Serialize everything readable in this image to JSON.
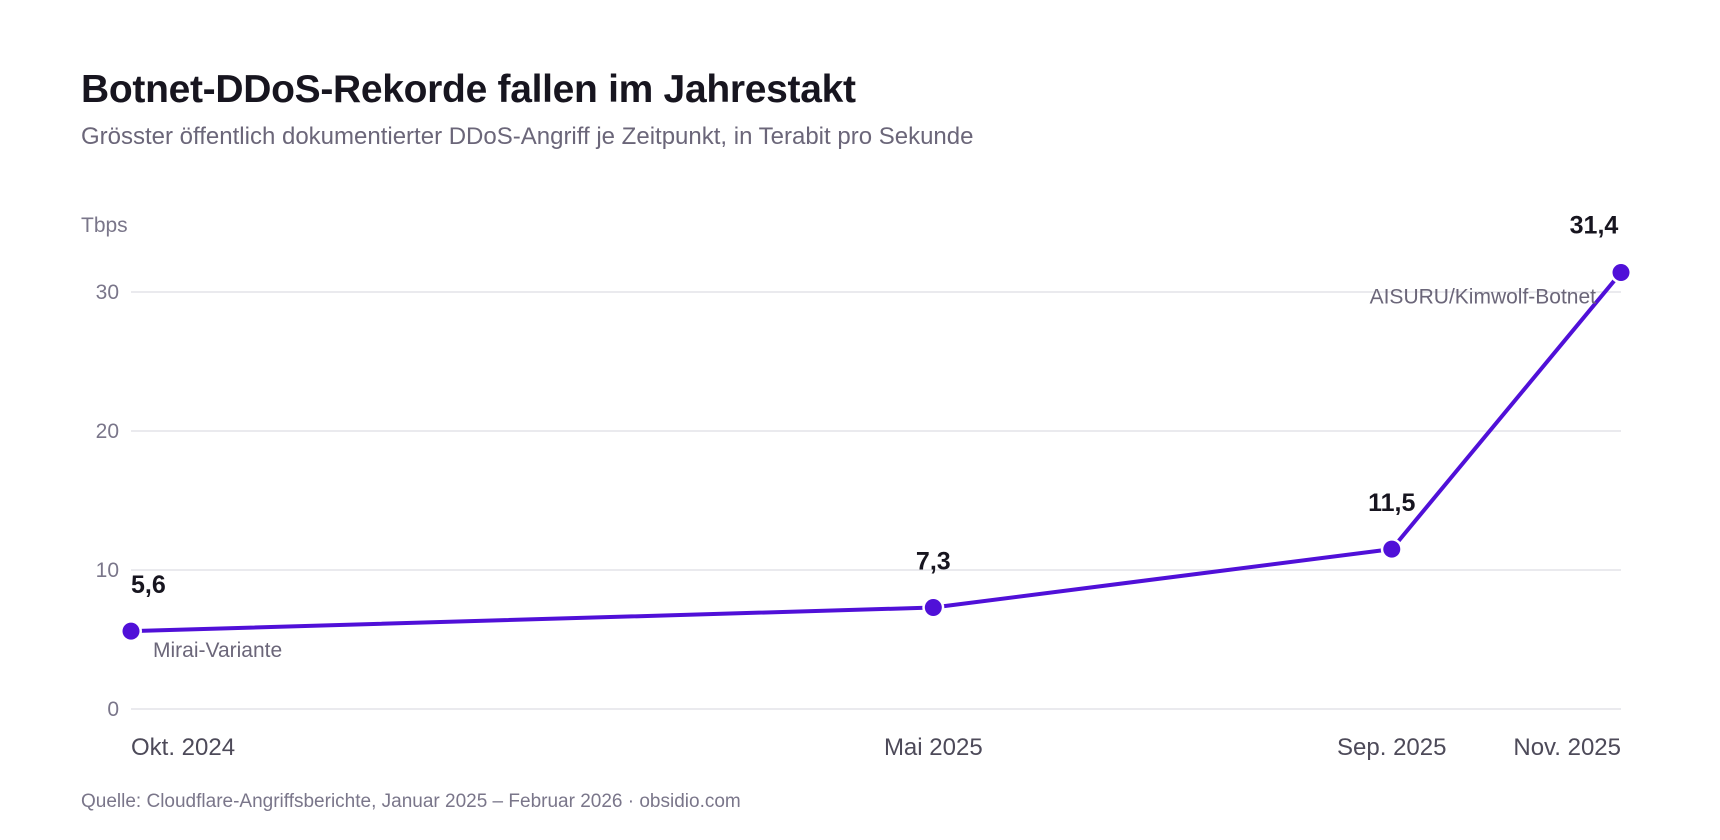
{
  "header": {
    "title": "Botnet-DDoS-Rekorde fallen im Jahrestakt",
    "subtitle": "Grösster öffentlich dokumentierter DDoS-Angriff je Zeitpunkt, in Terabit pro Sekunde"
  },
  "footer": {
    "source": "Quelle: Cloudflare-Angriffsberichte, Januar 2025 – Februar 2026 · obsidio.com"
  },
  "chart_data": {
    "type": "line",
    "title": "Botnet-DDoS-Rekorde fallen im Jahrestakt",
    "subtitle": "Grösster öffentlich dokumentierter DDoS-Angriff je Zeitpunkt, in Terabit pro Sekunde",
    "unit_label": "Tbps",
    "x": [
      "2024-10",
      "2025-05",
      "2025-09",
      "2025-11"
    ],
    "x_tick_labels": [
      "Okt. 2024",
      "Mai 2025",
      "Sep. 2025",
      "Nov. 2025"
    ],
    "values": [
      5.6,
      7.3,
      11.5,
      31.4
    ],
    "data_labels": [
      "5,6",
      "7,3",
      "11,5",
      "31,4"
    ],
    "annotations": [
      {
        "index": 0,
        "text": "Mirai-Variante"
      },
      {
        "index": 3,
        "text": "AISURU/Kimwolf-Botnet"
      }
    ],
    "ylim": [
      0,
      30
    ],
    "y_ticks": [
      0,
      10,
      20,
      30
    ],
    "y_tick_labels": [
      "0",
      "10",
      "20",
      "30"
    ],
    "grid": true,
    "legend": "none",
    "color": "#5010d8"
  }
}
